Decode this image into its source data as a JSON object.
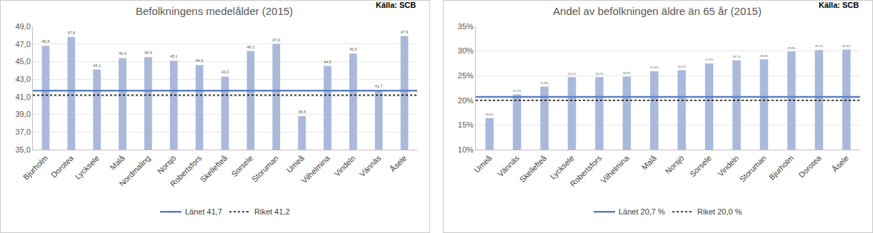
{
  "chart_data": [
    {
      "type": "bar",
      "title": "Befolkningens medelålder (2015)",
      "source": "Källa: SCB",
      "categories": [
        "Bjurholm",
        "Dorotea",
        "Lycksele",
        "Malå",
        "Nordmaling",
        "Norsjö",
        "Robertsfors",
        "Skellefteå",
        "Sorsele",
        "Storuman",
        "Umeå",
        "Vilhelmina",
        "Vindeln",
        "Vännäs",
        "Åsele"
      ],
      "values": [
        46.8,
        47.8,
        44.1,
        45.4,
        45.5,
        45.1,
        44.6,
        43.3,
        46.2,
        47.0,
        38.8,
        44.5,
        45.9,
        41.7,
        47.9
      ],
      "value_labels": [
        "46,8",
        "47,8",
        "44,1",
        "45,4",
        "45,5",
        "45,1",
        "44,6",
        "43,3",
        "46,2",
        "47,0",
        "38,8",
        "44,5",
        "45,9",
        "41,7",
        "47,9"
      ],
      "color": "#a9b9db",
      "data_labels": true,
      "ylim": [
        35,
        49
      ],
      "yticks": [
        {
          "value": 35,
          "label": "35,0"
        },
        {
          "value": 37,
          "label": "37,0"
        },
        {
          "value": 39,
          "label": "39,0"
        },
        {
          "value": 41,
          "label": "41,0"
        },
        {
          "value": 43,
          "label": "43,0"
        },
        {
          "value": 45,
          "label": "45,0"
        },
        {
          "value": 47,
          "label": "47,0"
        },
        {
          "value": 49,
          "label": "49,0"
        }
      ],
      "grid": true,
      "legend": "bottom",
      "reference_lines": [
        {
          "name": "Länet 41,7",
          "value": 41.7,
          "color": "#5b7fc0",
          "line_style": "solid"
        },
        {
          "name": "Riket 41,2",
          "value": 41.2,
          "color": "#000000",
          "line_style": "dotted"
        }
      ]
    },
    {
      "type": "bar",
      "title": "Andel av befolkningen äldre än 65 år (2015)",
      "source": "Källa: SCB",
      "categories": [
        "Umeå",
        "Vännäs",
        "Skellefteå",
        "Lycksele",
        "Robertsfors",
        "Vilhelmina",
        "Malå",
        "Norsjö",
        "Sorsele",
        "Vindeln",
        "Storuman",
        "Bjurholm",
        "Dorotea",
        "Åsele"
      ],
      "values": [
        16.4,
        21.2,
        22.8,
        24.7,
        24.7,
        24.8,
        25.9,
        26.1,
        27.5,
        28.1,
        28.3,
        29.9,
        30.2,
        30.3
      ],
      "value_labels": [
        "16,4%",
        "21,2%",
        "22,8%",
        "24,7%",
        "24,7%",
        "24,8%",
        "25,9%",
        "26,1%",
        "27,5%",
        "28,1%",
        "28,3%",
        "29,9%",
        "30,2%",
        "30,3%"
      ],
      "color": "#a9b9db",
      "data_labels": true,
      "ylim": [
        10,
        35
      ],
      "yticks": [
        {
          "value": 10,
          "label": "10%"
        },
        {
          "value": 15,
          "label": "15%"
        },
        {
          "value": 20,
          "label": "20%"
        },
        {
          "value": 25,
          "label": "25%"
        },
        {
          "value": 30,
          "label": "30%"
        },
        {
          "value": 35,
          "label": "35%"
        }
      ],
      "grid": true,
      "legend": "bottom",
      "reference_lines": [
        {
          "name": "Länet 20,7 %",
          "value": 20.7,
          "color": "#5b7fc0",
          "line_style": "solid"
        },
        {
          "name": "Riket 20,0 %",
          "value": 20.0,
          "color": "#000000",
          "line_style": "dotted"
        }
      ]
    }
  ]
}
